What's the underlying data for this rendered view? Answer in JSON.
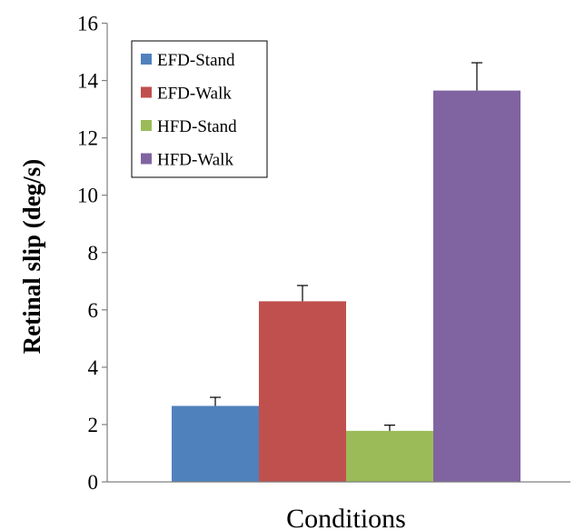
{
  "chart_data": {
    "type": "bar",
    "xlabel": "Conditions",
    "ylabel": "Retinal slip (deg/s)",
    "ylim": [
      0,
      16
    ],
    "yticks": [
      "0",
      "2",
      "4",
      "6",
      "8",
      "10",
      "12",
      "14",
      "16"
    ],
    "grid": false,
    "legend_position": "top-left",
    "series": [
      {
        "name": "EFD-Stand",
        "value": 2.65,
        "error": 0.3,
        "color": "#4F81BD"
      },
      {
        "name": "EFD-Walk",
        "value": 6.3,
        "error": 0.55,
        "color": "#C0504D"
      },
      {
        "name": "HFD-Stand",
        "value": 1.78,
        "error": 0.2,
        "color": "#9BBB59"
      },
      {
        "name": "HFD-Walk",
        "value": 13.65,
        "error": 0.97,
        "color": "#8064A2"
      }
    ]
  }
}
